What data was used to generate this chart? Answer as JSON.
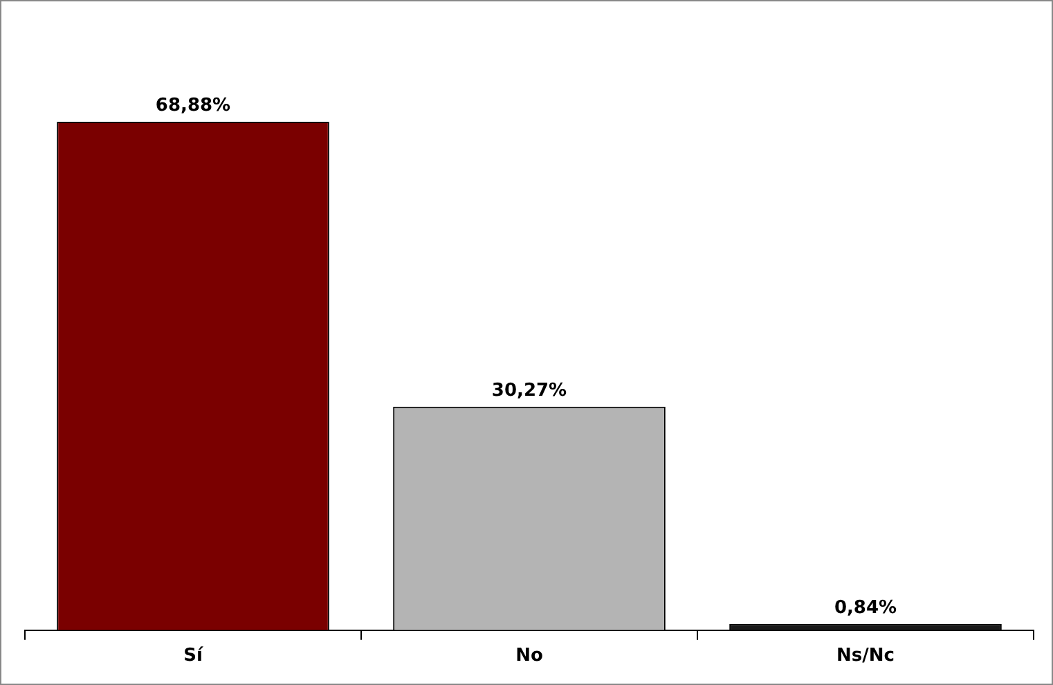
{
  "chart_data": {
    "type": "bar",
    "categories": [
      "Sí",
      "No",
      "Ns/Nc"
    ],
    "values": [
      68.88,
      30.27,
      0.84
    ],
    "colors": [
      "#7a0000",
      "#b4b4b4",
      "#1a1a1a"
    ],
    "value_labels": [
      "68,88%",
      "30,27%",
      "0,84%"
    ],
    "grid": false,
    "legend": false
  }
}
